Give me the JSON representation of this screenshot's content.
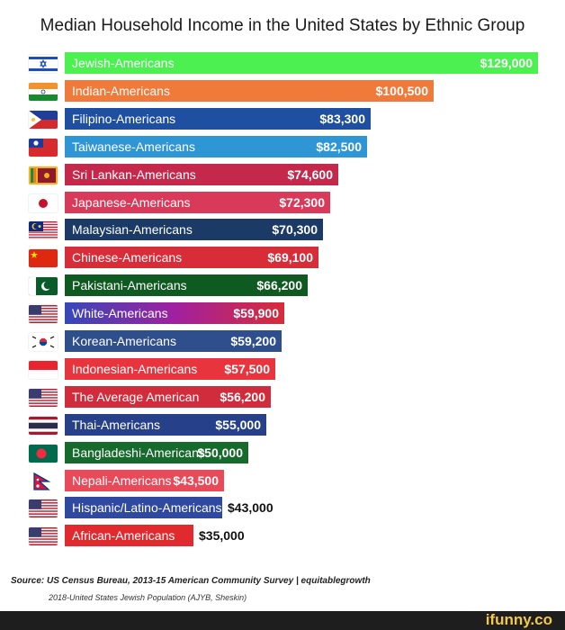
{
  "chart_data": {
    "type": "bar",
    "orientation": "horizontal",
    "title": "Median Household Income in the United States  by Ethnic Group",
    "categories": [
      "Jewish-Americans",
      "Indian-Americans",
      "Filipino-Americans",
      "Taiwanese-Americans",
      "Sri Lankan-Americans",
      "Japanese-Americans",
      "Malaysian-Americans",
      "Chinese-Americans",
      "Pakistani-Americans",
      "White-Americans",
      "Korean-Americans",
      "Indonesian-Americans",
      "The Average American",
      "Thai-Americans",
      "Bangladeshi-Americans",
      "Nepali-Americans",
      "Hispanic/Latino-Americans",
      "African-Americans"
    ],
    "values": [
      129000,
      100500,
      83300,
      82500,
      74600,
      72300,
      70300,
      69100,
      66200,
      59900,
      59200,
      57500,
      56200,
      55000,
      50000,
      43500,
      43000,
      35000
    ],
    "value_labels": [
      "$129,000",
      "$100,500",
      "$83,300",
      "$82,500",
      "$74,600",
      "$72,300",
      "$70,300",
      "$69,100",
      "$66,200",
      "$59,900",
      "$59,200",
      "$57,500",
      "$56,200",
      "$55,000",
      "$50,000",
      "$43,500",
      "$43,000",
      "$35,000"
    ],
    "bar_colors": [
      "#4cf051",
      "#f07a3a",
      "#1f4fa0",
      "#2f96d6",
      "#c4284a",
      "#d93a5a",
      "#1b3a66",
      "#d82c38",
      "#0f5a20",
      "linear-gradient(90deg,#3548b8,#a020a0,#d82c38)",
      "#2f4f8c",
      "#e8353d",
      "#d02c3c",
      "#27408a",
      "#166a2c",
      "#e84a5a",
      "#2f49a0",
      "#e02a2e"
    ],
    "flags": [
      "israel-flag",
      "india-flag",
      "philippines-flag",
      "taiwan-flag",
      "sri-lanka-flag",
      "japan-flag",
      "malaysia-flag",
      "china-flag",
      "pakistan-flag",
      "usa-flag",
      "south-korea-flag",
      "indonesia-flag",
      "usa-flag",
      "thailand-flag",
      "bangladesh-flag",
      "nepal-flag",
      "usa-flag",
      "usa-flag"
    ],
    "xlim": [
      0,
      129000
    ],
    "grid": false,
    "legend": "none"
  },
  "source_line1": "Source: US Census Bureau, 2013-15 American Community Survey | equitablegrowth",
  "source_line2": "2018-United States Jewish Population (AJYB, Sheskin)",
  "brand": "ifunny.co"
}
